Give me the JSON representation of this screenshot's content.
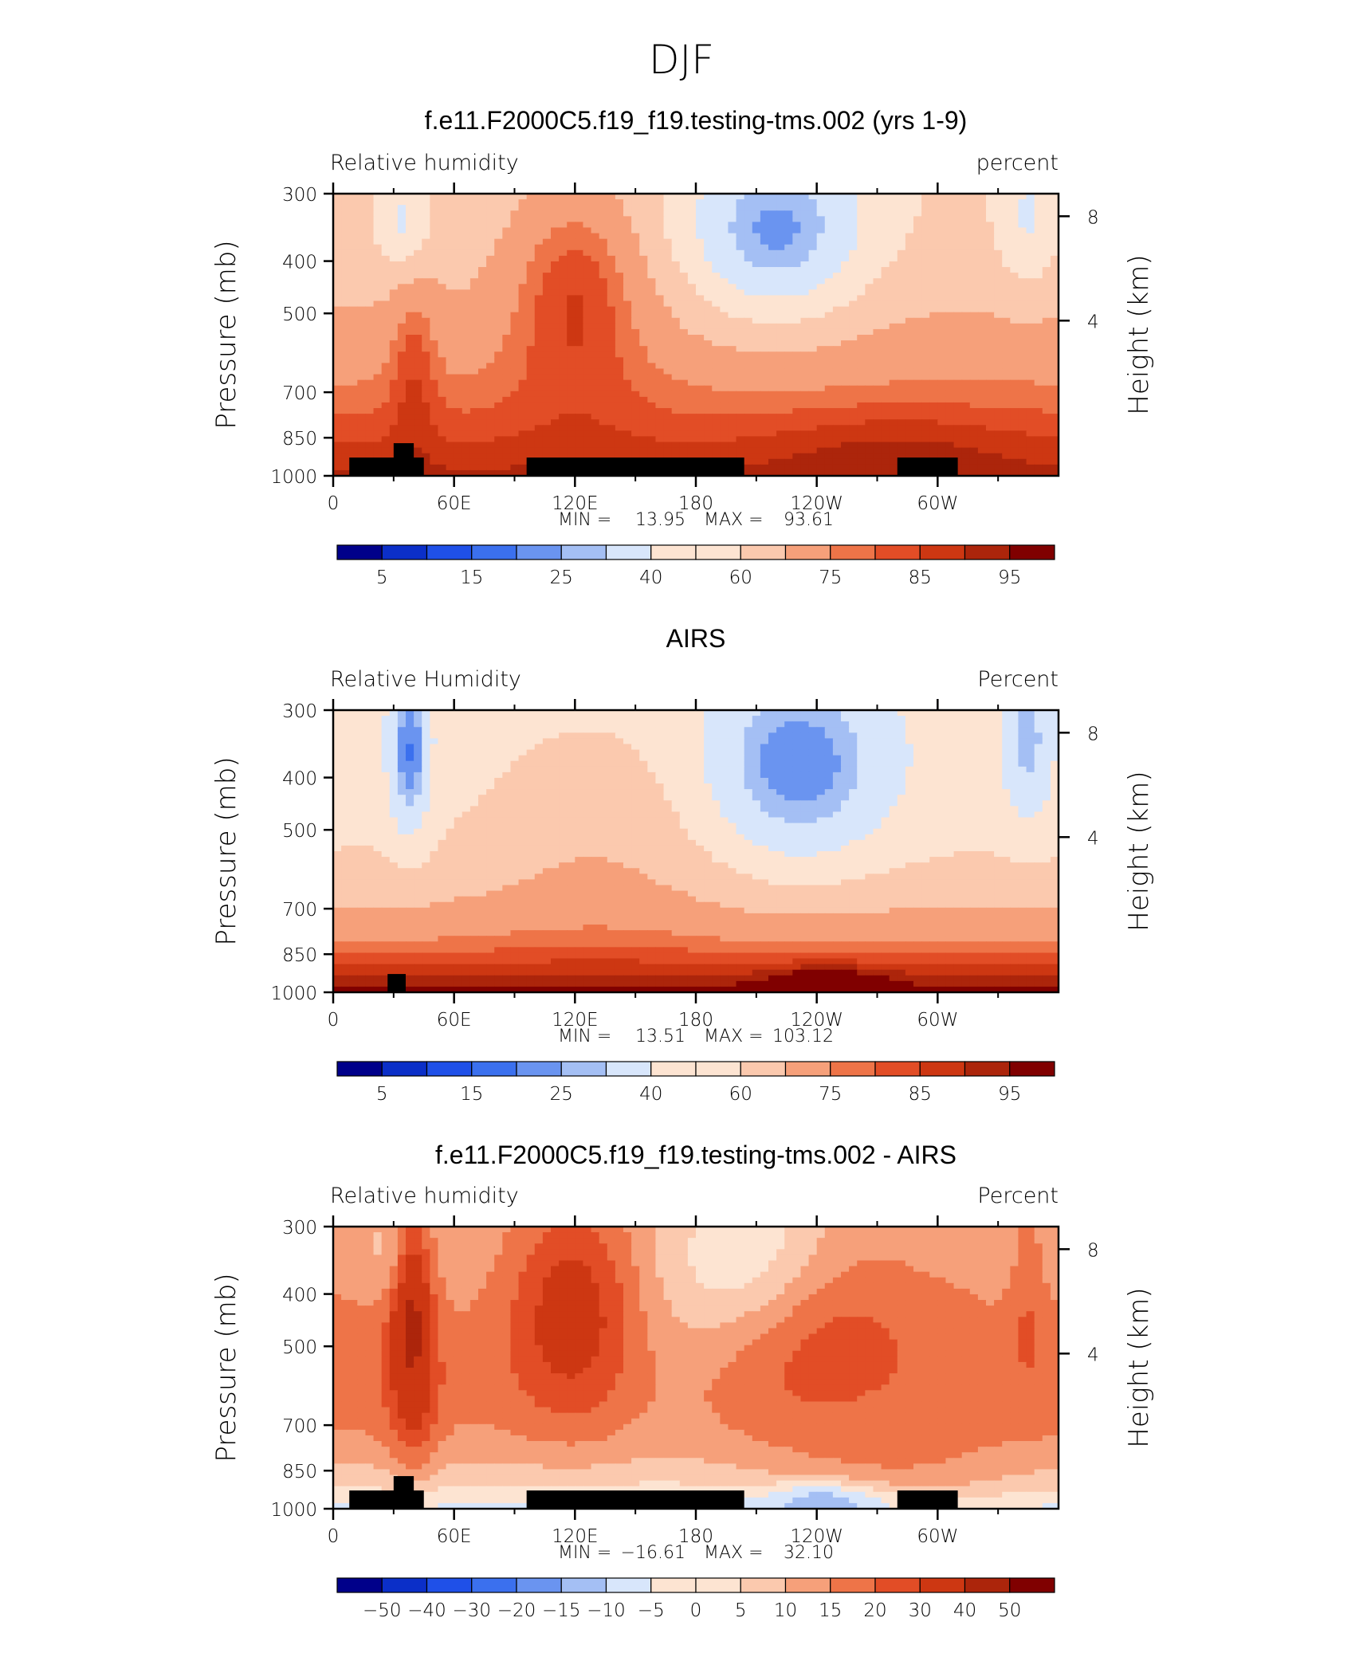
{
  "figure_title": "DJF",
  "chart_data": [
    {
      "type": "heatmap",
      "title": "f.e11.F2000C5.f19_f19.testing-tms.002 (yrs 1-9)",
      "left_label": "Relative humidity",
      "right_label": "percent",
      "ylabel": "Pressure (mb)",
      "y2label": "Height (km)",
      "x_ticks": [
        "0",
        "60E",
        "120E",
        "180",
        "120W",
        "60W"
      ],
      "y_ticks": [
        "300",
        "400",
        "500",
        "700",
        "850",
        "1000"
      ],
      "y2_ticks": [
        "8",
        "4"
      ],
      "stats": {
        "min_label": "MIN =",
        "min": "13.95",
        "max_label": "MAX =",
        "max": "93.61"
      },
      "colorbar_labels": [
        "5",
        "15",
        "25",
        "40",
        "60",
        "75",
        "85",
        "95"
      ],
      "field": "model"
    },
    {
      "type": "heatmap",
      "title": "AIRS",
      "left_label": "Relative Humidity",
      "right_label": "Percent",
      "ylabel": "Pressure (mb)",
      "y2label": "Height (km)",
      "x_ticks": [
        "0",
        "60E",
        "120E",
        "180",
        "120W",
        "60W"
      ],
      "y_ticks": [
        "300",
        "400",
        "500",
        "700",
        "850",
        "1000"
      ],
      "y2_ticks": [
        "8",
        "4"
      ],
      "stats": {
        "min_label": "MIN =",
        "min": "13.51",
        "max_label": "MAX =",
        "max": "103.12"
      },
      "colorbar_labels": [
        "5",
        "15",
        "25",
        "40",
        "60",
        "75",
        "85",
        "95"
      ],
      "field": "obs"
    },
    {
      "type": "heatmap",
      "title": "f.e11.F2000C5.f19_f19.testing-tms.002 - AIRS",
      "left_label": "Relative humidity",
      "right_label": "Percent",
      "ylabel": "Pressure (mb)",
      "y2label": "Height (km)",
      "x_ticks": [
        "0",
        "60E",
        "120E",
        "180",
        "120W",
        "60W"
      ],
      "y_ticks": [
        "300",
        "400",
        "500",
        "700",
        "850",
        "1000"
      ],
      "y2_ticks": [
        "8",
        "4"
      ],
      "stats": {
        "min_label": "MIN =",
        "min": "−16.61",
        "max_label": "MAX =",
        "max": "32.10"
      },
      "colorbar_labels": [
        "−50",
        "−40",
        "−30",
        "−20",
        "−15",
        "−10",
        "−5",
        "0",
        "5",
        "10",
        "15",
        "20",
        "30",
        "40",
        "50"
      ],
      "field": "diff"
    }
  ],
  "colors": {
    "seq": [
      "#00008a",
      "#0b2fc8",
      "#1f50e8",
      "#3b70ee",
      "#6a94f0",
      "#a4bff4",
      "#d8e6fb",
      "#fde4d2",
      "#fbc9ae",
      "#f6a07a",
      "#ee7448",
      "#e24d26",
      "#cd3712",
      "#ac250b",
      "#800000"
    ],
    "diff": [
      "#00008a",
      "#0b2fc8",
      "#1f50e8",
      "#3b70ee",
      "#6a94f0",
      "#a4bff4",
      "#d8e6fb",
      "#fde4d2",
      "#fbc9ae",
      "#f6a07a",
      "#ee7448",
      "#e24d26",
      "#cd3712",
      "#ac250b",
      "#800000"
    ],
    "topography": "#000000"
  }
}
